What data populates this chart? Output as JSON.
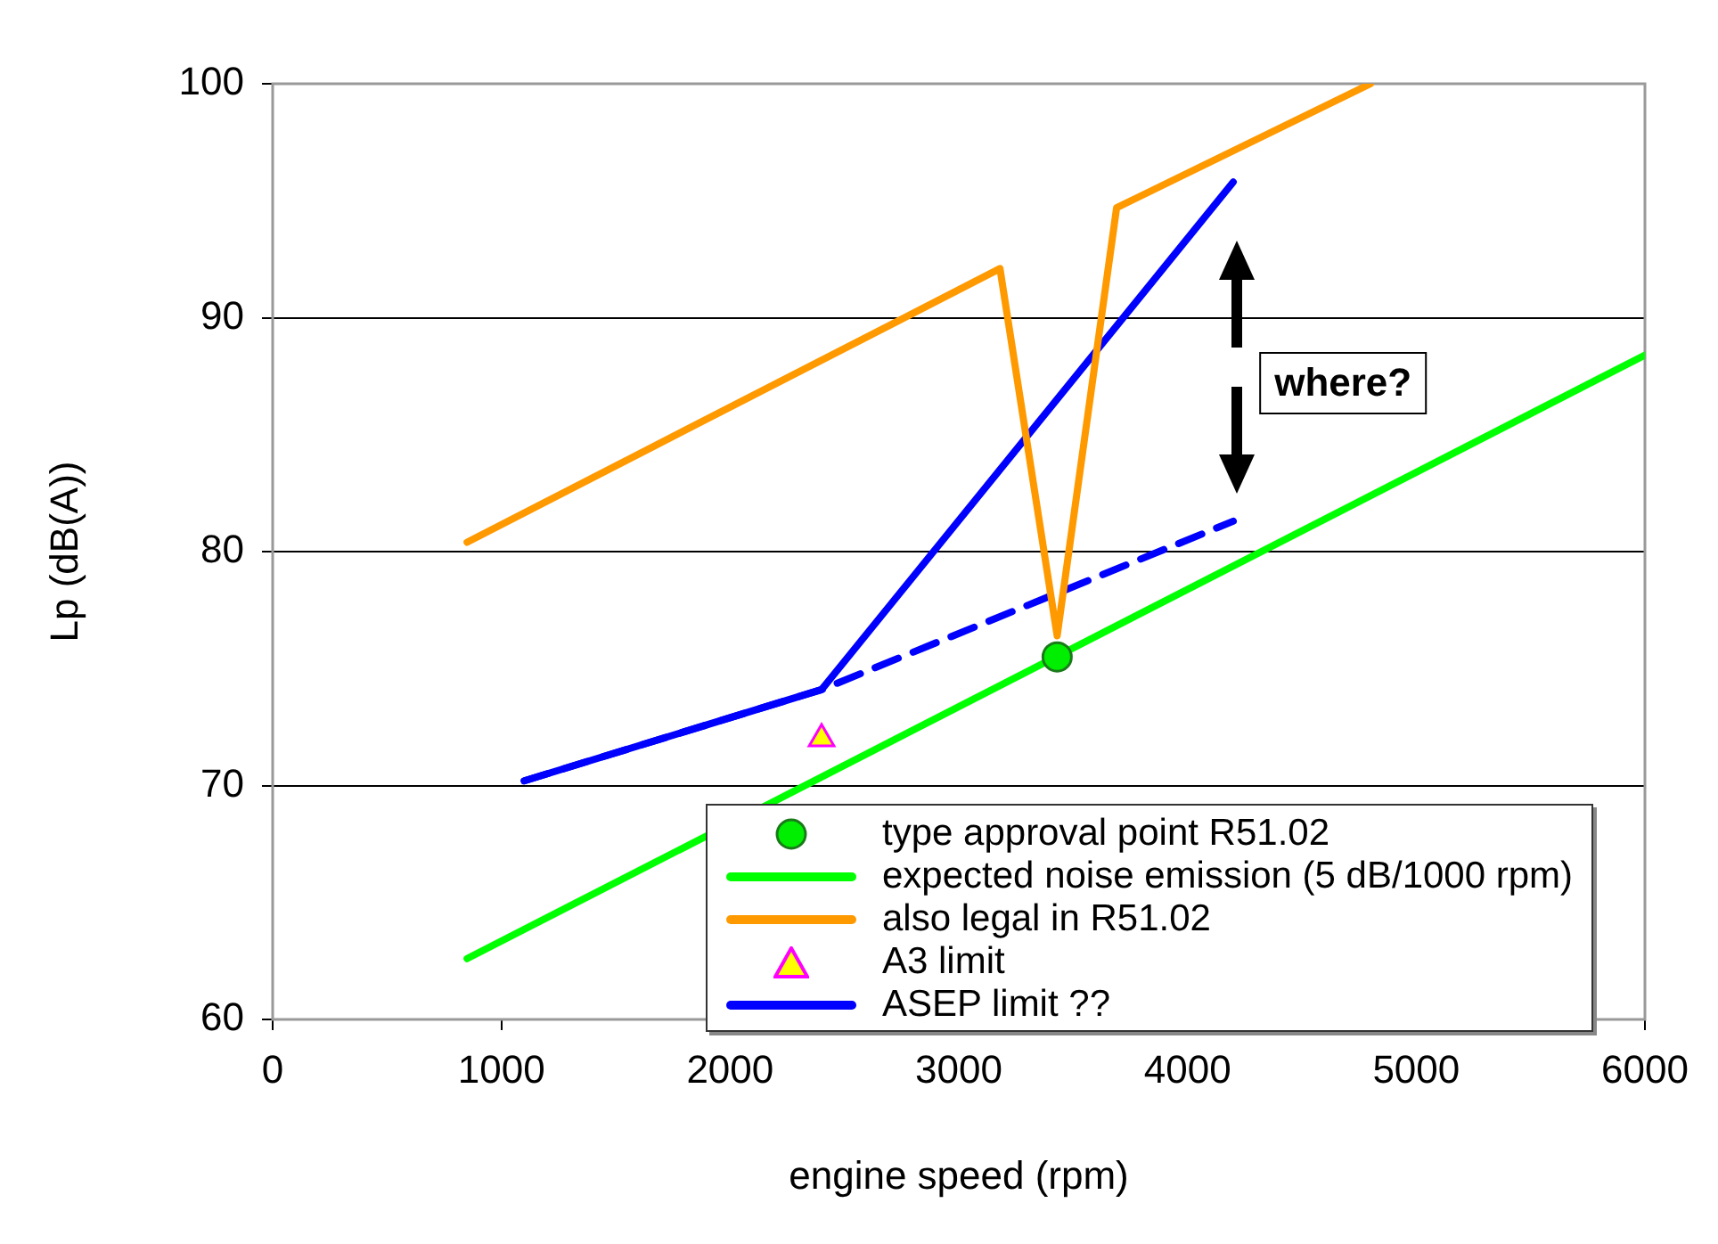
{
  "chart_data": {
    "type": "line",
    "xlabel": "engine speed (rpm)",
    "ylabel": "Lp (dB(A))",
    "xlim": [
      0,
      6000
    ],
    "xticks": [
      0,
      1000,
      2000,
      3000,
      4000,
      5000,
      6000
    ],
    "ylim": [
      60,
      100
    ],
    "yticks": [
      60,
      70,
      80,
      90,
      100
    ],
    "grid": "y",
    "legend": "bottom right",
    "series": [
      {
        "name": "type approval point R51.02",
        "type": "scatter",
        "marker": "circle",
        "color": "#00ee00",
        "x": [
          3430
        ],
        "values": [
          75.5
        ]
      },
      {
        "name": "expected noise emission (5 dB/1000 rpm)",
        "marker": "none",
        "color": "#00ff00",
        "x": [
          850,
          6000
        ],
        "values": [
          62.6,
          88.4
        ]
      },
      {
        "name": "also legal in R51.02",
        "marker": "none",
        "color": "#ff9900",
        "x": [
          850,
          3180,
          3430,
          3690,
          4800
        ],
        "values": [
          80.4,
          92.1,
          76.4,
          94.7,
          100
        ]
      },
      {
        "name": "A3 limit",
        "type": "scatter",
        "marker": "triangle",
        "color": "#ffff00",
        "x": [
          2400
        ],
        "values": [
          72
        ]
      },
      {
        "name": "ASEP limit ??",
        "marker": "none",
        "color": "#0000ff",
        "x": [
          1100,
          2400,
          4200
        ],
        "values": [
          70.2,
          74.1,
          95.8
        ]
      },
      {
        "marker": "none",
        "line_style": "dashed",
        "color": "#0000ff",
        "x": [
          1100,
          2400,
          4200
        ],
        "values": [
          70.2,
          74.1,
          81.3
        ]
      }
    ],
    "annotations": [
      "where?"
    ]
  }
}
